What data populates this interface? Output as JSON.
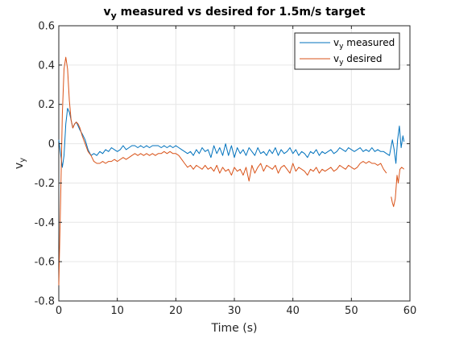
{
  "chart_data": {
    "type": "line",
    "title": {
      "main": "v",
      "sub": "y",
      "rest": " measured vs desired for 1.5m/s target"
    },
    "xlabel": "Time (s)",
    "ylabel": {
      "main": "v",
      "sub": "y"
    },
    "xlim": [
      0,
      60
    ],
    "ylim": [
      -0.8,
      0.6
    ],
    "xticks": [
      0,
      10,
      20,
      30,
      40,
      50,
      60
    ],
    "xtick_labels": [
      "0",
      "10",
      "20",
      "30",
      "40",
      "50",
      "60"
    ],
    "yticks": [
      -0.8,
      -0.6,
      -0.4,
      -0.2,
      0,
      0.2,
      0.4,
      0.6
    ],
    "ytick_labels": [
      "-0.8",
      "-0.6",
      "-0.4",
      "-0.2",
      "0",
      "0.2",
      "0.4",
      "0.6"
    ],
    "grid": true,
    "legend_position": "top-right",
    "series": [
      {
        "label": {
          "main": "v",
          "sub": "y",
          "rest": " measured"
        },
        "color": "#0072BD",
        "x": [
          0,
          0.3,
          0.6,
          0.9,
          1.2,
          1.5,
          1.8,
          2.1,
          2.4,
          2.7,
          3.0,
          3.3,
          3.6,
          4.0,
          4.5,
          5.0,
          5.5,
          6.0,
          6.5,
          7.0,
          7.5,
          8.0,
          8.5,
          9.0,
          9.5,
          10.0,
          10.5,
          11.0,
          11.5,
          12.0,
          12.5,
          13.0,
          13.5,
          14.0,
          14.5,
          15.0,
          15.5,
          16.0,
          16.5,
          17.0,
          17.5,
          18.0,
          18.5,
          19.0,
          19.5,
          20.0,
          20.5,
          21.0,
          21.5,
          22.0,
          22.5,
          23.0,
          23.5,
          24.0,
          24.5,
          25.0,
          25.5,
          26.0,
          26.5,
          27.0,
          27.5,
          28.0,
          28.5,
          29.0,
          29.5,
          30.0,
          30.5,
          31.0,
          31.5,
          32.0,
          32.5,
          33.0,
          33.5,
          34.0,
          34.5,
          35.0,
          35.5,
          36.0,
          36.5,
          37.0,
          37.5,
          38.0,
          38.5,
          39.0,
          39.5,
          40.0,
          40.5,
          41.0,
          41.5,
          42.0,
          42.5,
          43.0,
          43.5,
          44.0,
          44.5,
          45.0,
          45.5,
          46.0,
          46.5,
          47.0,
          47.5,
          48.0,
          48.5,
          49.0,
          49.5,
          50.0,
          50.5,
          51.0,
          51.5,
          52.0,
          52.5,
          53.0,
          53.5,
          54.0,
          54.5,
          55.0,
          55.5,
          56.0,
          56.5,
          57.0,
          57.3,
          57.6,
          57.9,
          58.2,
          58.5,
          58.8,
          59.0
        ],
        "y": [
          0.02,
          -0.05,
          -0.12,
          -0.06,
          0.1,
          0.18,
          0.16,
          0.12,
          0.08,
          0.1,
          0.11,
          0.09,
          0.07,
          0.05,
          0.02,
          -0.03,
          -0.06,
          -0.05,
          -0.06,
          -0.04,
          -0.05,
          -0.03,
          -0.04,
          -0.02,
          -0.03,
          -0.04,
          -0.03,
          -0.01,
          -0.03,
          -0.02,
          -0.01,
          -0.01,
          -0.02,
          -0.01,
          -0.02,
          -0.01,
          -0.02,
          -0.01,
          -0.01,
          -0.01,
          -0.02,
          -0.01,
          -0.02,
          -0.01,
          -0.02,
          -0.01,
          -0.02,
          -0.03,
          -0.04,
          -0.05,
          -0.04,
          -0.06,
          -0.03,
          -0.05,
          -0.02,
          -0.04,
          -0.03,
          -0.07,
          -0.01,
          -0.05,
          -0.02,
          -0.06,
          0.0,
          -0.06,
          -0.01,
          -0.07,
          -0.02,
          -0.05,
          -0.03,
          -0.06,
          -0.02,
          -0.04,
          -0.06,
          -0.02,
          -0.05,
          -0.04,
          -0.06,
          -0.03,
          -0.05,
          -0.02,
          -0.06,
          -0.03,
          -0.05,
          -0.04,
          -0.02,
          -0.05,
          -0.03,
          -0.06,
          -0.04,
          -0.05,
          -0.07,
          -0.04,
          -0.05,
          -0.03,
          -0.06,
          -0.04,
          -0.05,
          -0.04,
          -0.03,
          -0.05,
          -0.04,
          -0.02,
          -0.03,
          -0.04,
          -0.02,
          -0.03,
          -0.04,
          -0.03,
          -0.02,
          -0.04,
          -0.03,
          -0.04,
          -0.02,
          -0.04,
          -0.03,
          -0.04,
          -0.04,
          -0.05,
          -0.06,
          0.02,
          -0.03,
          -0.1,
          0.02,
          0.09,
          -0.02,
          0.04,
          0.01
        ]
      },
      {
        "label": {
          "main": "v",
          "sub": "y",
          "rest": " desired"
        },
        "color": "#D95319",
        "x": [
          0,
          0.3,
          0.6,
          0.9,
          1.2,
          1.5,
          1.8,
          2.1,
          2.4,
          2.7,
          3.0,
          3.3,
          3.6,
          4.0,
          4.5,
          5.0,
          5.5,
          6.0,
          6.5,
          7.0,
          7.5,
          8.0,
          8.5,
          9.0,
          9.5,
          10.0,
          10.5,
          11.0,
          11.5,
          12.0,
          12.5,
          13.0,
          13.5,
          14.0,
          14.5,
          15.0,
          15.5,
          16.0,
          16.5,
          17.0,
          17.5,
          18.0,
          18.5,
          19.0,
          19.5,
          20.0,
          20.5,
          21.0,
          21.5,
          22.0,
          22.5,
          23.0,
          23.5,
          24.0,
          24.5,
          25.0,
          25.5,
          26.0,
          26.5,
          27.0,
          27.5,
          28.0,
          28.5,
          29.0,
          29.5,
          30.0,
          30.5,
          31.0,
          31.5,
          32.0,
          32.5,
          33.0,
          33.5,
          34.0,
          34.5,
          35.0,
          35.5,
          36.0,
          36.5,
          37.0,
          37.5,
          38.0,
          38.5,
          39.0,
          39.5,
          40.0,
          40.5,
          41.0,
          41.5,
          42.0,
          42.5,
          43.0,
          43.5,
          44.0,
          44.5,
          45.0,
          45.5,
          46.0,
          46.5,
          47.0,
          47.5,
          48.0,
          48.5,
          49.0,
          49.5,
          50.0,
          50.5,
          51.0,
          51.5,
          52.0,
          52.5,
          53.0,
          53.5,
          54.0,
          54.5,
          55.0,
          55.5,
          56.0,
          null,
          56.8,
          57.0,
          57.2,
          57.5,
          57.8,
          58.0,
          58.3,
          58.6,
          59.0
        ],
        "y": [
          -0.72,
          -0.3,
          0.15,
          0.38,
          0.44,
          0.38,
          0.22,
          0.12,
          0.08,
          0.1,
          0.11,
          0.1,
          0.08,
          0.04,
          0.0,
          -0.04,
          -0.06,
          -0.09,
          -0.1,
          -0.1,
          -0.09,
          -0.1,
          -0.09,
          -0.09,
          -0.08,
          -0.09,
          -0.08,
          -0.07,
          -0.08,
          -0.07,
          -0.06,
          -0.05,
          -0.06,
          -0.05,
          -0.06,
          -0.05,
          -0.06,
          -0.05,
          -0.06,
          -0.05,
          -0.05,
          -0.04,
          -0.05,
          -0.04,
          -0.05,
          -0.05,
          -0.06,
          -0.08,
          -0.1,
          -0.12,
          -0.11,
          -0.13,
          -0.11,
          -0.12,
          -0.13,
          -0.11,
          -0.13,
          -0.12,
          -0.14,
          -0.11,
          -0.15,
          -0.12,
          -0.14,
          -0.13,
          -0.16,
          -0.12,
          -0.14,
          -0.13,
          -0.16,
          -0.12,
          -0.19,
          -0.11,
          -0.15,
          -0.12,
          -0.1,
          -0.14,
          -0.11,
          -0.12,
          -0.13,
          -0.11,
          -0.15,
          -0.12,
          -0.11,
          -0.13,
          -0.15,
          -0.1,
          -0.14,
          -0.12,
          -0.13,
          -0.14,
          -0.16,
          -0.13,
          -0.14,
          -0.12,
          -0.15,
          -0.13,
          -0.14,
          -0.13,
          -0.12,
          -0.14,
          -0.13,
          -0.11,
          -0.12,
          -0.13,
          -0.11,
          -0.12,
          -0.13,
          -0.12,
          -0.1,
          -0.09,
          -0.1,
          -0.09,
          -0.1,
          -0.1,
          -0.11,
          -0.1,
          -0.13,
          -0.15,
          null,
          -0.27,
          -0.3,
          -0.32,
          -0.28,
          -0.16,
          -0.2,
          -0.13,
          -0.12,
          -0.13
        ]
      }
    ]
  }
}
